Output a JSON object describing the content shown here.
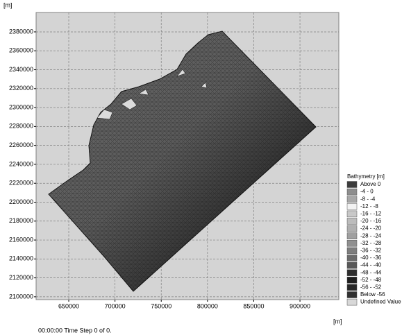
{
  "chart_data": {
    "type": "mesh-map",
    "x_label": "[m]",
    "y_label": "[m]",
    "xlim": [
      614700,
      942000
    ],
    "ylim": [
      2097000,
      2400500
    ],
    "xticks": [
      650000,
      700000,
      750000,
      800000,
      850000,
      900000
    ],
    "yticks": [
      2100000,
      2120000,
      2140000,
      2160000,
      2180000,
      2200000,
      2220000,
      2240000,
      2260000,
      2280000,
      2300000,
      2320000,
      2340000,
      2360000,
      2380000
    ],
    "grid": true,
    "background": "#d4d4d4",
    "legend": {
      "title": "Bathymetry [m]",
      "items": [
        {
          "name": "Above 0",
          "color": "#3c3c3c"
        },
        {
          "name": "-4 - 0",
          "color": "#8e8e8e"
        },
        {
          "name": "-8 - -4",
          "color": "#a8a8a8"
        },
        {
          "name": "-12 - -8",
          "color": "#f2f2f2"
        },
        {
          "name": "-16 - -12",
          "color": "#c8c8c8"
        },
        {
          "name": "-20 - -16",
          "color": "#bcbcbc"
        },
        {
          "name": "-24 - -20",
          "color": "#b0b0b0"
        },
        {
          "name": "-28 - -24",
          "color": "#a0a0a0"
        },
        {
          "name": "-32 - -28",
          "color": "#909090"
        },
        {
          "name": "-36 - -32",
          "color": "#7e7e7e"
        },
        {
          "name": "-40 - -36",
          "color": "#6c6c6c"
        },
        {
          "name": "-44 - -40",
          "color": "#585858"
        },
        {
          "name": "-48 - -44",
          "color": "#2e2e2e"
        },
        {
          "name": "-52 - -48",
          "color": "#1e1e1e"
        },
        {
          "name": "-56 - -52",
          "color": "#262626"
        },
        {
          "name": "Below -56",
          "color": "#303030"
        },
        {
          "name": "Undefined Value",
          "color": "#d8d8d8"
        }
      ]
    },
    "footer": "00:00:00 Time Step 0 of 0."
  }
}
